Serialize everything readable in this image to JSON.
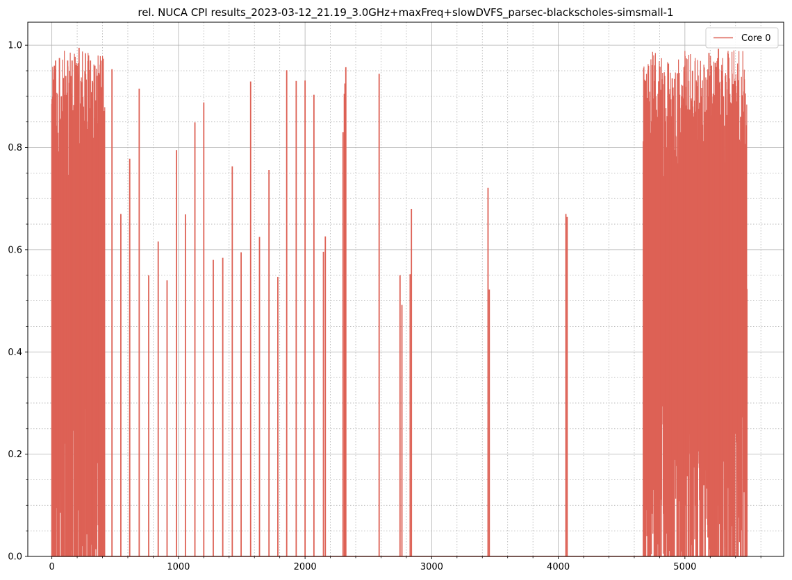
{
  "chart_data": {
    "type": "line",
    "title": "rel. NUCA CPI results_2023-03-12_21.19_3.0GHz+maxFreq+slowDVFS_parsec-blackscholes-simsmall-1",
    "xlabel": "",
    "ylabel": "",
    "xlim": [
      -190,
      5780
    ],
    "ylim": [
      0,
      1.045
    ],
    "x_ticks": [
      0,
      1000,
      2000,
      3000,
      4000,
      5000
    ],
    "x_tick_labels": [
      "0",
      "1000",
      "2000",
      "3000",
      "4000",
      "5000"
    ],
    "y_ticks": [
      0,
      0.2,
      0.4,
      0.6,
      0.8,
      1.0
    ],
    "y_tick_labels": [
      "0.0",
      "0.2",
      "0.4",
      "0.6",
      "0.8",
      "1.0"
    ],
    "x_minor_step": 200,
    "y_minor_step": 0.05,
    "grid": true,
    "legend_position": "upper right",
    "series": [
      {
        "name": "Core 0",
        "color": "#dd6155",
        "dense_regions": [
          {
            "x_start": 0,
            "x_end": 420,
            "y_min": 0.0,
            "y_max": 0.99
          },
          {
            "x_start": 4670,
            "x_end": 5490,
            "y_min": 0.0,
            "y_max": 0.99
          }
        ],
        "spikes": [
          {
            "x": 0,
            "y": 0.885
          },
          {
            "x": 20,
            "y": 0.96
          },
          {
            "x": 30,
            "y": 0.97
          },
          {
            "x": 45,
            "y": 0.79
          },
          {
            "x": 60,
            "y": 0.975
          },
          {
            "x": 75,
            "y": 0.9
          },
          {
            "x": 90,
            "y": 0.85
          },
          {
            "x": 110,
            "y": 0.94
          },
          {
            "x": 125,
            "y": 0.97
          },
          {
            "x": 140,
            "y": 0.95
          },
          {
            "x": 160,
            "y": 0.97
          },
          {
            "x": 180,
            "y": 0.86
          },
          {
            "x": 200,
            "y": 0.96
          },
          {
            "x": 215,
            "y": 0.995
          },
          {
            "x": 230,
            "y": 0.93
          },
          {
            "x": 250,
            "y": 0.88
          },
          {
            "x": 270,
            "y": 0.84
          },
          {
            "x": 290,
            "y": 0.98
          },
          {
            "x": 305,
            "y": 0.97
          },
          {
            "x": 320,
            "y": 0.93
          },
          {
            "x": 340,
            "y": 0.96
          },
          {
            "x": 355,
            "y": 0.94
          },
          {
            "x": 370,
            "y": 0.9
          },
          {
            "x": 390,
            "y": 0.8
          },
          {
            "x": 405,
            "y": 0.56
          },
          {
            "x": 415,
            "y": 0.32
          },
          {
            "x": 475,
            "y": 0.953
          },
          {
            "x": 545,
            "y": 0.67
          },
          {
            "x": 615,
            "y": 0.778
          },
          {
            "x": 690,
            "y": 0.915
          },
          {
            "x": 765,
            "y": 0.55
          },
          {
            "x": 840,
            "y": 0.616
          },
          {
            "x": 910,
            "y": 0.54
          },
          {
            "x": 985,
            "y": 0.795
          },
          {
            "x": 1055,
            "y": 0.669
          },
          {
            "x": 1130,
            "y": 0.849
          },
          {
            "x": 1200,
            "y": 0.888
          },
          {
            "x": 1275,
            "y": 0.58
          },
          {
            "x": 1350,
            "y": 0.584
          },
          {
            "x": 1425,
            "y": 0.763
          },
          {
            "x": 1495,
            "y": 0.595
          },
          {
            "x": 1570,
            "y": 0.929
          },
          {
            "x": 1640,
            "y": 0.625
          },
          {
            "x": 1715,
            "y": 0.756
          },
          {
            "x": 1785,
            "y": 0.547
          },
          {
            "x": 1855,
            "y": 0.951
          },
          {
            "x": 1930,
            "y": 0.93
          },
          {
            "x": 2000,
            "y": 0.931
          },
          {
            "x": 2070,
            "y": 0.903
          },
          {
            "x": 2145,
            "y": 0.596
          },
          {
            "x": 2160,
            "y": 0.626
          },
          {
            "x": 2300,
            "y": 0.83
          },
          {
            "x": 2310,
            "y": 0.905
          },
          {
            "x": 2315,
            "y": 0.925
          },
          {
            "x": 2322,
            "y": 0.957
          },
          {
            "x": 2585,
            "y": 0.944
          },
          {
            "x": 2750,
            "y": 0.55
          },
          {
            "x": 2765,
            "y": 0.492
          },
          {
            "x": 2830,
            "y": 0.552
          },
          {
            "x": 2840,
            "y": 0.68
          },
          {
            "x": 3445,
            "y": 0.721
          },
          {
            "x": 3455,
            "y": 0.522
          },
          {
            "x": 4060,
            "y": 0.67
          },
          {
            "x": 4070,
            "y": 0.664
          },
          {
            "x": 4675,
            "y": 0.955
          },
          {
            "x": 4690,
            "y": 0.93
          },
          {
            "x": 4720,
            "y": 0.89
          },
          {
            "x": 4760,
            "y": 0.93
          },
          {
            "x": 4800,
            "y": 0.91
          },
          {
            "x": 4840,
            "y": 0.94
          },
          {
            "x": 4870,
            "y": 0.964
          },
          {
            "x": 4900,
            "y": 0.935
          },
          {
            "x": 4940,
            "y": 0.945
          },
          {
            "x": 4980,
            "y": 0.9
          },
          {
            "x": 5000,
            "y": 0.96
          },
          {
            "x": 5030,
            "y": 0.93
          },
          {
            "x": 5060,
            "y": 0.95
          },
          {
            "x": 5100,
            "y": 0.92
          },
          {
            "x": 5130,
            "y": 0.9
          },
          {
            "x": 5160,
            "y": 0.87
          },
          {
            "x": 5190,
            "y": 0.985
          },
          {
            "x": 5210,
            "y": 0.96
          },
          {
            "x": 5240,
            "y": 0.965
          },
          {
            "x": 5265,
            "y": 0.993
          },
          {
            "x": 5290,
            "y": 0.95
          },
          {
            "x": 5320,
            "y": 0.94
          },
          {
            "x": 5350,
            "y": 0.935
          },
          {
            "x": 5380,
            "y": 0.924
          },
          {
            "x": 5410,
            "y": 0.89
          },
          {
            "x": 5440,
            "y": 0.86
          },
          {
            "x": 5460,
            "y": 0.84
          },
          {
            "x": 5475,
            "y": 0.735
          },
          {
            "x": 5485,
            "y": 0.665
          },
          {
            "x": 5490,
            "y": 0.523
          }
        ]
      }
    ]
  }
}
